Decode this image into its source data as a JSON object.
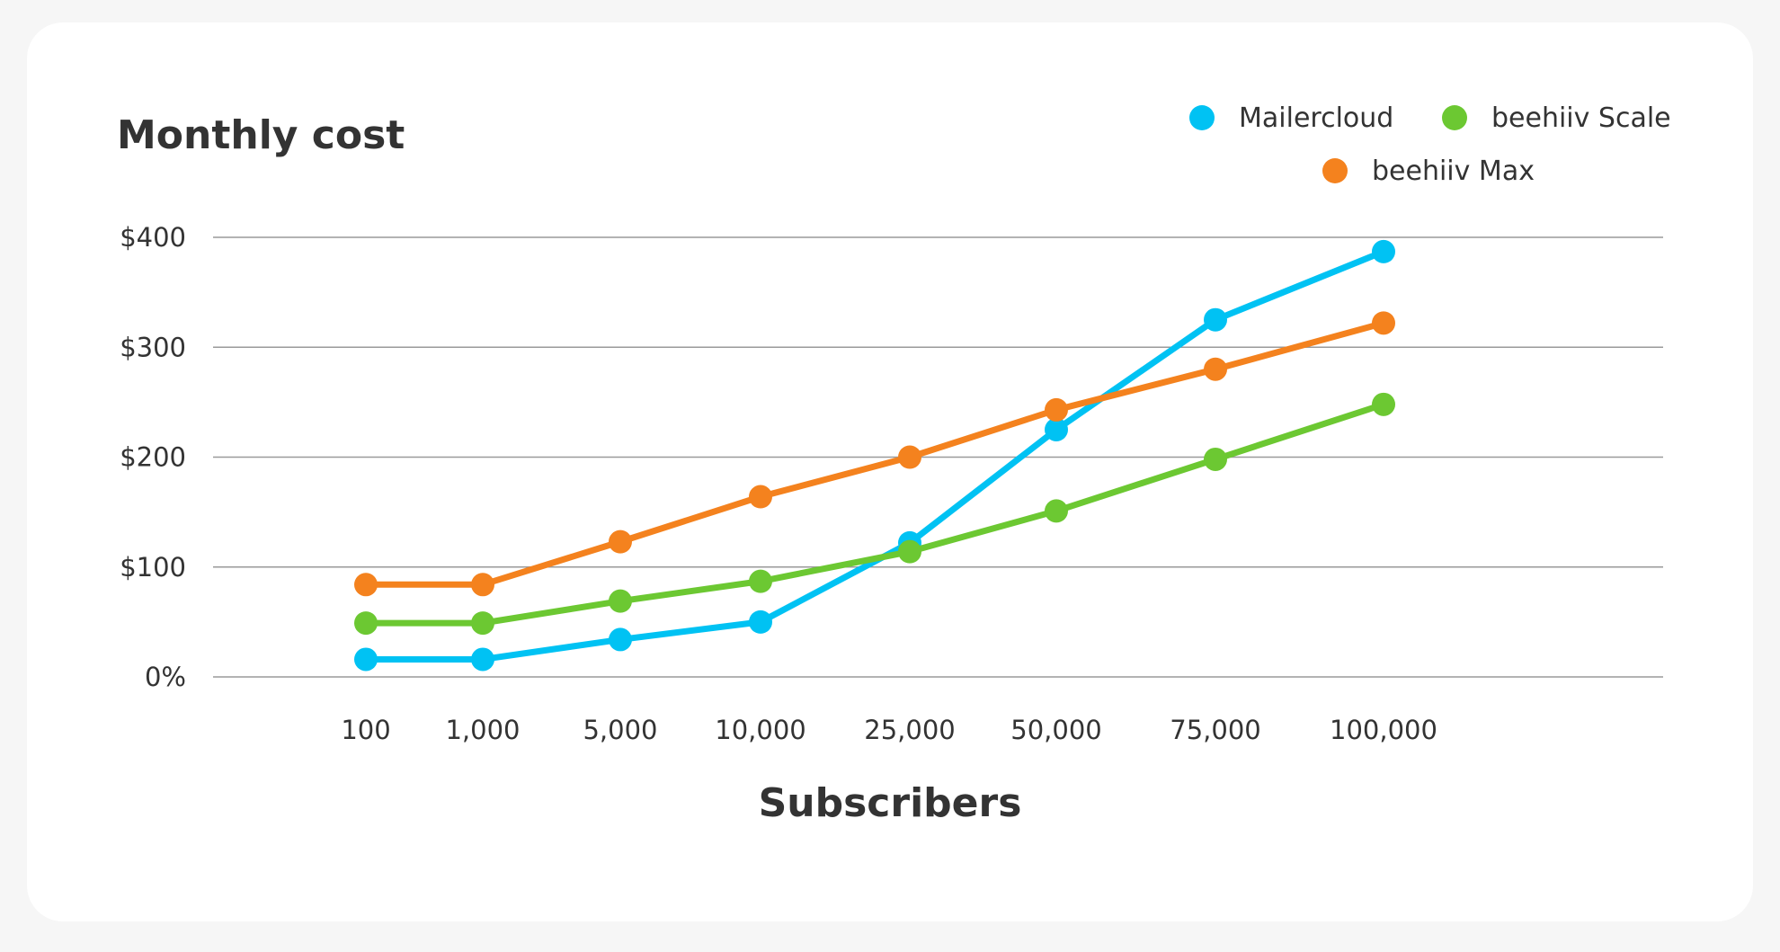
{
  "chart_data": {
    "type": "line",
    "title": "",
    "ylabel": "Monthly cost",
    "xlabel": "Subscribers",
    "categories": [
      "100",
      "1,000",
      "5,000",
      "10,000",
      "25,000",
      "50,000",
      "75,000",
      "100,000"
    ],
    "yticks": [
      "0%",
      "$100",
      "$200",
      "$300",
      "$400"
    ],
    "ylim": [
      0,
      400
    ],
    "grid": true,
    "legend_position": "top-right",
    "series": [
      {
        "name": "Mailercloud",
        "color": "#00c2f3",
        "values": [
          16,
          16,
          34,
          50,
          122,
          225,
          325,
          387
        ]
      },
      {
        "name": "beehiiv Scale",
        "color": "#6cc832",
        "values": [
          49,
          49,
          69,
          87,
          114,
          151,
          198,
          248
        ]
      },
      {
        "name": "beehiiv Max",
        "color": "#f4821e",
        "values": [
          84,
          84,
          123,
          164,
          200,
          243,
          280,
          322
        ]
      }
    ]
  }
}
